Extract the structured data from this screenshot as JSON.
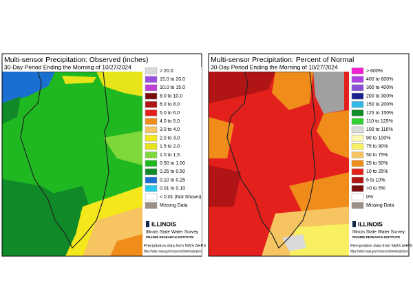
{
  "panels": [
    {
      "title": "Multi-sensor Precipitation: Observed (inches)",
      "subtitle": "30-Day Period Ending the Morning of 10/27/2024",
      "legend": [
        {
          "label": "> 20.0",
          "color": "#d9d9d9"
        },
        {
          "label": "15.0 to 20.0",
          "color": "#9b4fe0"
        },
        {
          "label": "10.0 to 15.0",
          "color": "#c040d8"
        },
        {
          "label": "8.0 to 10.0",
          "color": "#7a0c0c"
        },
        {
          "label": "6.0 to 8.0",
          "color": "#b01414"
        },
        {
          "label": "5.0 to 6.0",
          "color": "#e4201c"
        },
        {
          "label": "4.0 to 5.0",
          "color": "#f08c1a"
        },
        {
          "label": "3.0 to 4.0",
          "color": "#f6c460"
        },
        {
          "label": "2.0 to 3.0",
          "color": "#f4e81c"
        },
        {
          "label": "1.5 to 2.0",
          "color": "#e8e41a"
        },
        {
          "label": "1.0 to 1.5",
          "color": "#7ed83a"
        },
        {
          "label": "0.50 to 1.00",
          "color": "#20b820"
        },
        {
          "label": "0.25 to 0.50",
          "color": "#108a28"
        },
        {
          "label": "0.10 to 0.25",
          "color": "#1a6fd0"
        },
        {
          "label": "0.01 to 0.10",
          "color": "#28c8f0"
        },
        {
          "label": "< 0.01 (Not Shown)",
          "color": "#ffffff"
        },
        {
          "label": "Missing Data",
          "color": "#9a9088"
        }
      ],
      "logo": {
        "name": "ILLINOIS",
        "org": "Illinois State Water Survey",
        "institute": "PRAIRIE RESEARCH INSTITUTE"
      },
      "source": "Precipitation data from NWS AHPS",
      "url": "https://water.noaa.gov/resources/downloads/preci"
    },
    {
      "title": "Multi-sensor Precipitation: Percent of Normal",
      "subtitle": "30-Day Period Ending the Morning of 10/27/2024",
      "legend": [
        {
          "label": "> 600%",
          "color": "#f020d0"
        },
        {
          "label": "400 to 600%",
          "color": "#b040e0"
        },
        {
          "label": "300 to 400%",
          "color": "#8a50d8"
        },
        {
          "label": "200 to 300%",
          "color": "#1a2090"
        },
        {
          "label": "150 to 200%",
          "color": "#30b8e8"
        },
        {
          "label": "125 to 150%",
          "color": "#108a28"
        },
        {
          "label": "110 to 125%",
          "color": "#30d030"
        },
        {
          "label": "100 to 110%",
          "color": "#d9d9d9"
        },
        {
          "label": "90 to 100%",
          "color": "#fff8b0"
        },
        {
          "label": "75 to 90%",
          "color": "#f8f060"
        },
        {
          "label": "50 to 75%",
          "color": "#f6c460"
        },
        {
          "label": "25 to 50%",
          "color": "#f08c1a"
        },
        {
          "label": "10 to 25%",
          "color": "#e4201c"
        },
        {
          "label": "5 to 10%",
          "color": "#b01414"
        },
        {
          "label": ">0 to 5%",
          "color": "#7a0c0c"
        },
        {
          "label": "0%",
          "color": "#ffffff"
        },
        {
          "label": "Missing Data",
          "color": "#9a9088"
        }
      ],
      "logo": {
        "name": "ILLINOIS",
        "org": "Illinois State Water Survey",
        "institute": "PRAIRIE RESEARCH INSTITUTE"
      },
      "source": "Precipitation data from NWS AHPS",
      "url": "https://water.noaa.gov/resources/downloads/preci"
    }
  ]
}
